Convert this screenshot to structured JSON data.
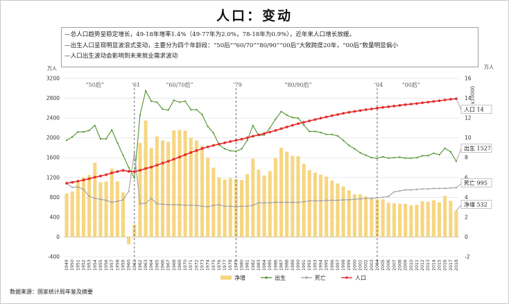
{
  "title": "人口：变动",
  "notes": [
    "—总人口趋势呈稳定增长，49-18年增率1.4%（49-77年为2.0%，78-18年为0.9%），近年来人口增长放缓。",
    "—出生人口呈现明显波浪式变动，主要分为四个年龄段：“50后”“60/70”“80/90”“00后”大致跨度20年，“00后”数量明显偏小",
    "—人口出生波动会影响到未来就业需求波动"
  ],
  "source": "数据来源：国家统计局年鉴及摘要",
  "chart_data": {
    "type": "bar+line",
    "x": [
      1949,
      1950,
      1951,
      1952,
      1953,
      1954,
      1955,
      1956,
      1957,
      1958,
      1959,
      1960,
      1961,
      1962,
      1963,
      1964,
      1965,
      1966,
      1967,
      1968,
      1969,
      1970,
      1971,
      1972,
      1973,
      1974,
      1975,
      1976,
      1977,
      1978,
      1979,
      1980,
      1981,
      1982,
      1983,
      1984,
      1985,
      1986,
      1987,
      1988,
      1989,
      1990,
      1991,
      1992,
      1993,
      1994,
      1995,
      1996,
      1997,
      1998,
      1999,
      2000,
      2001,
      2002,
      2003,
      2004,
      2005,
      2006,
      2007,
      2008,
      2009,
      2010,
      2011,
      2012,
      2013,
      2014,
      2015,
      2016,
      2017,
      2018
    ],
    "y_left": {
      "unit": "万人",
      "min": -400,
      "max": 3200,
      "ticks": [
        -400,
        0,
        400,
        800,
        1200,
        1600,
        2000,
        2400,
        2800,
        3200
      ]
    },
    "y_right": {
      "unit": "万人",
      "sub_unit": "x10000",
      "min": -2,
      "max": 16,
      "ticks": [
        -2,
        0,
        2,
        4,
        6,
        8,
        10,
        12,
        14,
        16
      ]
    },
    "series": [
      {
        "name": "净增",
        "type": "bar",
        "axis": "left",
        "color": "#f6d680",
        "values": [
          880,
          920,
          1100,
          1200,
          1250,
          1500,
          1100,
          1120,
          1380,
          1120,
          900,
          -150,
          250,
          1900,
          2350,
          1800,
          2030,
          1950,
          1920,
          2150,
          2160,
          2150,
          2000,
          1950,
          1840,
          1600,
          1400,
          1200,
          1160,
          1190,
          1170,
          1150,
          1270,
          1580,
          1360,
          1240,
          1330,
          1590,
          1800,
          1720,
          1640,
          1630,
          1480,
          1350,
          1300,
          1260,
          1220,
          1140,
          1080,
          1020,
          940,
          860,
          860,
          820,
          780,
          760,
          760,
          690,
          680,
          670,
          670,
          640,
          650,
          720,
          710,
          740,
          700,
          830,
          730,
          530
        ]
      },
      {
        "name": "出生",
        "type": "line",
        "axis": "left",
        "color": "#5d9a3c",
        "values": [
          1950,
          2020,
          2120,
          2120,
          2150,
          2250,
          1980,
          1980,
          2160,
          1900,
          1650,
          1400,
          1190,
          2460,
          2950,
          2740,
          2720,
          2580,
          2560,
          2760,
          2720,
          2740,
          2570,
          2570,
          2470,
          2230,
          2100,
          1860,
          1780,
          1740,
          1730,
          1780,
          1950,
          2250,
          2050,
          2060,
          2200,
          2380,
          2530,
          2460,
          2410,
          2400,
          2260,
          2130,
          2130,
          2110,
          2070,
          2070,
          2040,
          1950,
          1850,
          1780,
          1700,
          1650,
          1600,
          1590,
          1620,
          1590,
          1600,
          1610,
          1590,
          1590,
          1600,
          1640,
          1640,
          1690,
          1660,
          1790,
          1720,
          1527
        ]
      },
      {
        "name": "死亡",
        "type": "line",
        "axis": "left",
        "color": "#a6a6a6",
        "values": [
          1080,
          1000,
          1010,
          960,
          820,
          780,
          760,
          740,
          700,
          720,
          750,
          920,
          1710,
          670,
          680,
          780,
          670,
          660,
          650,
          650,
          650,
          640,
          640,
          640,
          620,
          610,
          640,
          650,
          620,
          620,
          610,
          620,
          620,
          640,
          690,
          690,
          690,
          700,
          700,
          700,
          700,
          700,
          710,
          730,
          730,
          730,
          740,
          740,
          740,
          750,
          750,
          760,
          770,
          780,
          780,
          790,
          800,
          820,
          910,
          930,
          950,
          950,
          960,
          970,
          970,
          980,
          980,
          980,
          990,
          995
        ]
      },
      {
        "name": "人口",
        "type": "line",
        "axis": "right",
        "color": "#e32c2c",
        "markers": true,
        "values": [
          5.42,
          5.52,
          5.63,
          5.75,
          5.88,
          6.03,
          6.15,
          6.28,
          6.47,
          6.6,
          6.72,
          6.62,
          6.59,
          6.73,
          6.91,
          7.05,
          7.25,
          7.45,
          7.64,
          7.85,
          8.07,
          8.3,
          8.52,
          8.72,
          8.92,
          9.09,
          9.24,
          9.37,
          9.5,
          9.63,
          9.75,
          9.87,
          10.01,
          10.17,
          10.3,
          10.44,
          10.59,
          10.75,
          10.93,
          11.1,
          11.27,
          11.43,
          11.58,
          11.72,
          11.85,
          11.99,
          12.11,
          12.24,
          12.36,
          12.48,
          12.58,
          12.67,
          12.76,
          12.85,
          12.92,
          13.0,
          13.08,
          13.14,
          13.21,
          13.28,
          13.35,
          13.41,
          13.47,
          13.54,
          13.61,
          13.68,
          13.75,
          13.83,
          13.9,
          13.95
        ]
      }
    ],
    "eras": [
      {
        "label": "“50后”",
        "year": 1954
      },
      {
        "label": "“60/70后”",
        "year": 1969
      },
      {
        "label": "“80/90后”",
        "year": 1990
      },
      {
        "label": "“00后”",
        "year": 2010
      }
    ],
    "markers": [
      {
        "label": "’61",
        "year": 1961
      },
      {
        "label": "’79",
        "year": 1979
      },
      {
        "label": "’04",
        "year": 2004
      }
    ],
    "callouts": [
      {
        "series": "人口",
        "text": "人口 14"
      },
      {
        "series": "出生",
        "text": "出生 1527"
      },
      {
        "series": "死亡",
        "text": "死亡 995"
      },
      {
        "series": "净增",
        "text": "净增 532"
      }
    ],
    "legend_position": "bottom"
  }
}
